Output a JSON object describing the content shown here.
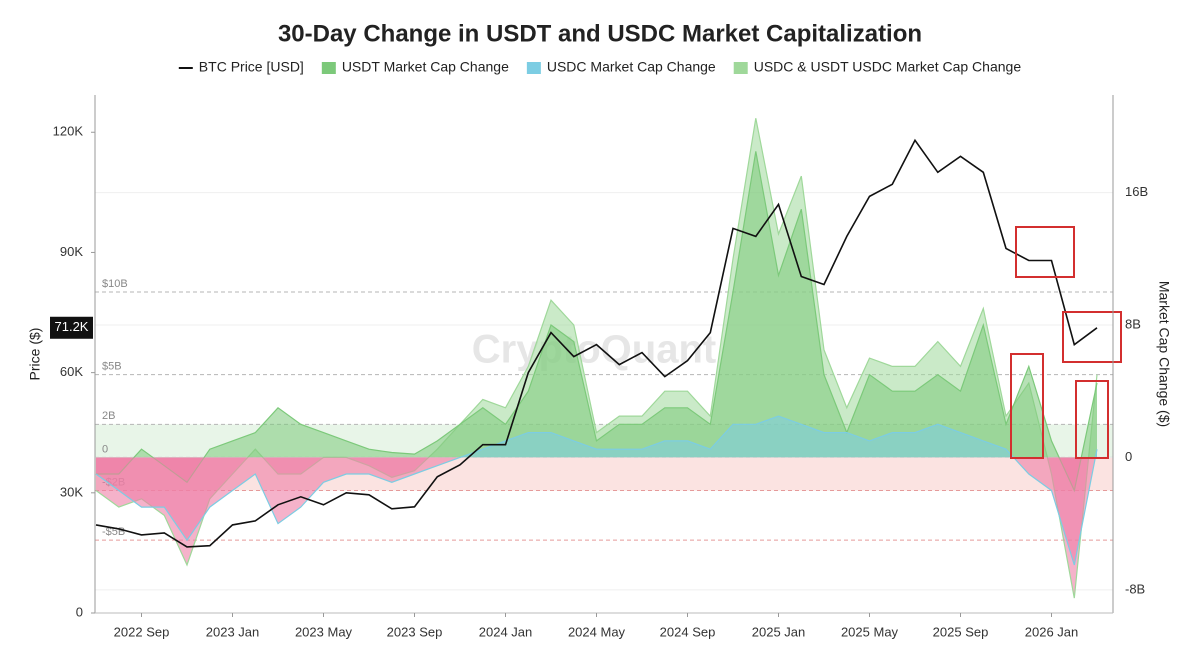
{
  "chart_data": {
    "type": "line-area",
    "title": "30-Day Change in USDT and USDC Market Capitalization",
    "watermark": "CryptoQuant",
    "ylabel": "Price ($)",
    "y2label": "Market Cap Change ($)",
    "x": [
      "2022 Jul",
      "2022 Aug",
      "2022 Sep",
      "2022 Oct",
      "2022 Nov",
      "2022 Dec",
      "2023 Jan",
      "2023 Feb",
      "2023 Mar",
      "2023 Apr",
      "2023 May",
      "2023 Jun",
      "2023 Jul",
      "2023 Aug",
      "2023 Sep",
      "2023 Oct",
      "2023 Nov",
      "2023 Dec",
      "2024 Jan",
      "2024 Feb",
      "2024 Mar",
      "2024 Apr",
      "2024 May",
      "2024 Jun",
      "2024 Jul",
      "2024 Aug",
      "2024 Sep",
      "2024 Oct",
      "2024 Nov",
      "2024 Dec",
      "2025 Jan",
      "2025 Feb",
      "2025 Mar",
      "2025 Apr",
      "2025 May",
      "2025 Jun",
      "2025 Jul",
      "2025 Aug",
      "2025 Sep",
      "2025 Oct",
      "2025 Nov",
      "2025 Dec",
      "2026 Jan",
      "2026 Feb",
      "2026 Mar"
    ],
    "xticks": [
      "2022 Sep",
      "2023 Jan",
      "2023 May",
      "2023 Sep",
      "2024 Jan",
      "2024 May",
      "2024 Sep",
      "2025 Jan",
      "2025 May",
      "2025 Sep",
      "2026 Jan"
    ],
    "ylim": [
      0,
      129300
    ],
    "yticks": [
      0,
      {
        "value": 30000,
        "label": "30K"
      },
      {
        "value": 60000,
        "label": "60K"
      },
      {
        "value": 90000,
        "label": "90K"
      },
      {
        "value": 120000,
        "label": "120K"
      }
    ],
    "y2lim": [
      -9.4,
      21.9
    ],
    "y2ticks": [
      {
        "value": -8,
        "label": "-8B"
      },
      0,
      {
        "value": 8,
        "label": "8B"
      },
      {
        "value": 16,
        "label": "16B"
      }
    ],
    "grid": true,
    "legend": "top",
    "negative_color": "#ee7fa6",
    "current_price": {
      "value": 71200,
      "label": "71.2K"
    },
    "reference_lines": [
      {
        "value": 10,
        "label": "$10B",
        "color": "#b5b5b5"
      },
      {
        "value": 5,
        "label": "$5B",
        "color": "#b5b5b5"
      },
      {
        "value": 2,
        "label": "2B",
        "color": "#b5b5b5",
        "shade": "#e8f5e8"
      },
      {
        "value": 0,
        "label": "0",
        "color": "#b5b5b5"
      },
      {
        "value": -2,
        "label": "-$2B",
        "color": "#e59a9a",
        "shade": "#fbe3e1"
      },
      {
        "value": -5,
        "label": "-$5B",
        "color": "#e59a9a"
      }
    ],
    "series": [
      {
        "name": "BTC Price [USD]",
        "color": "#111111",
        "kind": "line",
        "values": [
          22000,
          21000,
          19500,
          20000,
          16500,
          16800,
          22000,
          23000,
          27000,
          29000,
          27000,
          30000,
          29500,
          26000,
          26500,
          34000,
          37000,
          42000,
          42000,
          60000,
          70000,
          64000,
          67000,
          62000,
          65000,
          59000,
          63000,
          70000,
          96000,
          94000,
          102000,
          84000,
          82000,
          94000,
          104000,
          107000,
          118000,
          110000,
          114000,
          110000,
          91000,
          88000,
          88000,
          67000,
          71200
        ]
      },
      {
        "name": "USDT Market Cap Change",
        "color": "#7cc97a",
        "kind": "area",
        "axis": "y2",
        "values": [
          -1,
          -1,
          0.5,
          -0.5,
          -1.5,
          0.5,
          1,
          1.5,
          3,
          2,
          1.5,
          1,
          0.5,
          0.3,
          0.2,
          1,
          2,
          3,
          2,
          4,
          8,
          7,
          1,
          2,
          2,
          3,
          3,
          2,
          10,
          18.5,
          11,
          15,
          5,
          1.5,
          5,
          4,
          4,
          5,
          4,
          8,
          2,
          5.5,
          1,
          -2,
          4.5
        ]
      },
      {
        "name": "USDC Market Cap Change",
        "color": "#7ccde3",
        "kind": "area",
        "axis": "y2",
        "values": [
          -1,
          -2,
          -3,
          -3,
          -5,
          -3,
          -2,
          -1,
          -4,
          -3,
          -1.5,
          -1,
          -1,
          -1.5,
          -1,
          -0.5,
          0,
          0.5,
          1,
          1.5,
          1.5,
          1,
          0.5,
          0.5,
          0.5,
          1,
          1,
          0.5,
          2,
          2,
          2.5,
          2,
          1.5,
          1.5,
          1,
          1.5,
          1.5,
          2,
          1.5,
          1,
          0.5,
          -1,
          -2,
          -6.5,
          0.5
        ]
      },
      {
        "name": "USDC & USDT USDC Market Cap Change",
        "color": "#9fd89a",
        "kind": "area",
        "axis": "y2",
        "values": [
          -2,
          -3,
          -2.5,
          -3.5,
          -6.5,
          -2.5,
          -1,
          0.5,
          -1,
          -1,
          0,
          0,
          -0.5,
          -1.2,
          -0.8,
          0.5,
          2,
          3.5,
          3,
          5.5,
          9.5,
          8,
          1.5,
          2.5,
          2.5,
          4,
          4,
          2.5,
          12,
          20.5,
          13.5,
          17,
          6.5,
          3,
          6,
          5.5,
          5.5,
          7,
          5.5,
          9,
          2.5,
          4.5,
          -1,
          -8.5,
          5
        ]
      }
    ]
  }
}
